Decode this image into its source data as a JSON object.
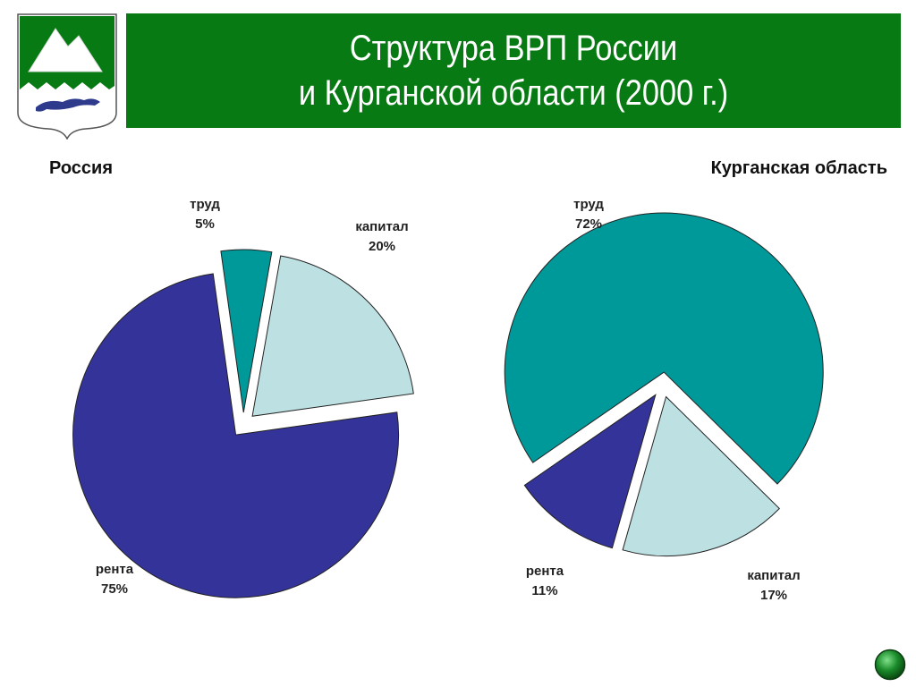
{
  "title": {
    "line1": "Структура ВРП России",
    "line2": "и Курганской  области (2000 г.)"
  },
  "colors": {
    "title_bar": "#087a14",
    "trud": "#009999",
    "kapital": "#bde1e3",
    "renta": "#343399",
    "outline": "#222222"
  },
  "icons": {
    "emblem": "kurgan-region-coat-of-arms-icon",
    "nav": "green-round-button-icon"
  },
  "chart_data": [
    {
      "type": "pie",
      "title": "Россия",
      "exploded": true,
      "slices": [
        {
          "key": "kapital",
          "label": "капитал",
          "value": 20,
          "value_label": "20%"
        },
        {
          "key": "renta",
          "label": "рента",
          "value": 75,
          "value_label": "75%"
        },
        {
          "key": "trud",
          "label": "труд",
          "value": 5,
          "value_label": "5%"
        }
      ]
    },
    {
      "type": "pie",
      "title": "Курганская область",
      "exploded": true,
      "slices": [
        {
          "key": "kapital",
          "label": "капитал",
          "value": 17,
          "value_label": "17%"
        },
        {
          "key": "renta",
          "label": "рента",
          "value": 11,
          "value_label": "11%"
        },
        {
          "key": "trud",
          "label": "труд",
          "value": 72,
          "value_label": "72%"
        }
      ]
    }
  ]
}
